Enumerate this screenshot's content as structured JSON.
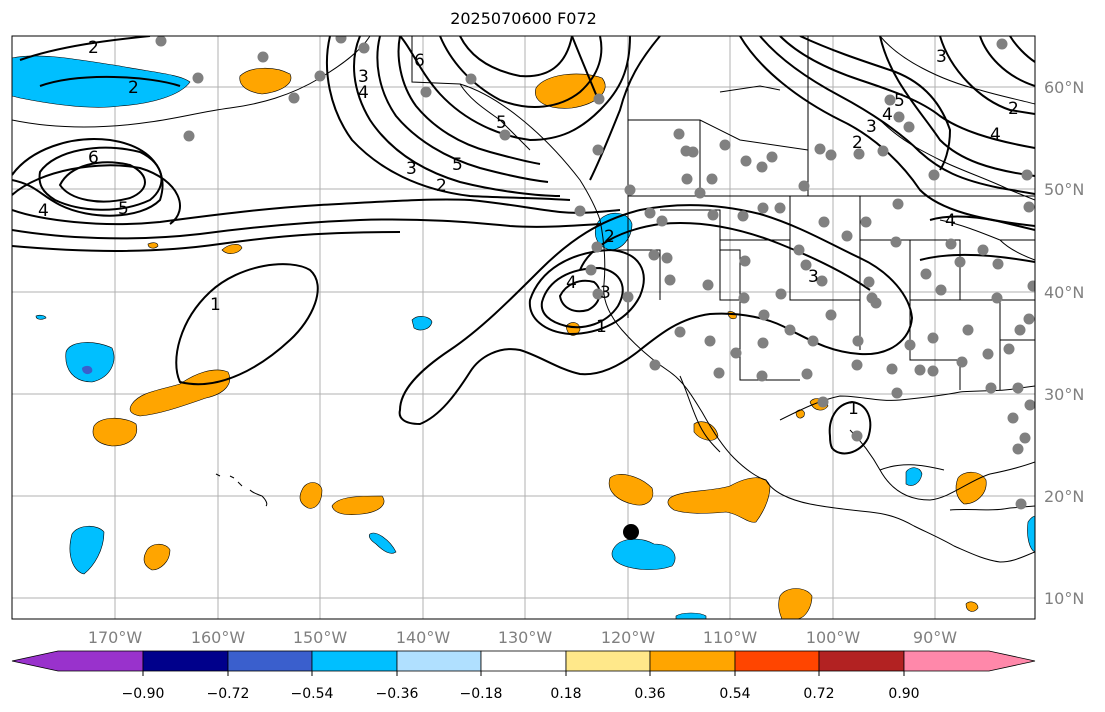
{
  "title": "2025070600 F072",
  "lon_ticks": [
    "170°W",
    "160°W",
    "150°W",
    "140°W",
    "130°W",
    "120°W",
    "110°W",
    "100°W",
    "90°W"
  ],
  "lat_ticks": [
    "60°N",
    "50°N",
    "40°N",
    "30°N",
    "20°N",
    "10°N"
  ],
  "colorbar": {
    "ticks": [
      "−0.90",
      "−0.72",
      "−0.54",
      "−0.36",
      "−0.18",
      "0.18",
      "0.36",
      "0.54",
      "0.72",
      "0.90"
    ],
    "colors": [
      "#9932cc",
      "#00008b",
      "#3a5fcd",
      "#00bfff",
      "#b0e0ff",
      "#ffffff",
      "#ffe88a",
      "#ffa500",
      "#ff4500",
      "#b22222",
      "#ff88aa"
    ]
  },
  "contour_labels": [
    "2",
    "6",
    "5",
    "4",
    "6",
    "4",
    "5",
    "3",
    "2",
    "1",
    "3",
    "2",
    "5",
    "4",
    "3",
    "2",
    "2",
    "4",
    "3",
    "1",
    "1",
    "3",
    "4",
    "5",
    "2",
    "4",
    "3"
  ],
  "markers": {
    "station_color": "#808080",
    "highlight_color": "#000000"
  }
}
